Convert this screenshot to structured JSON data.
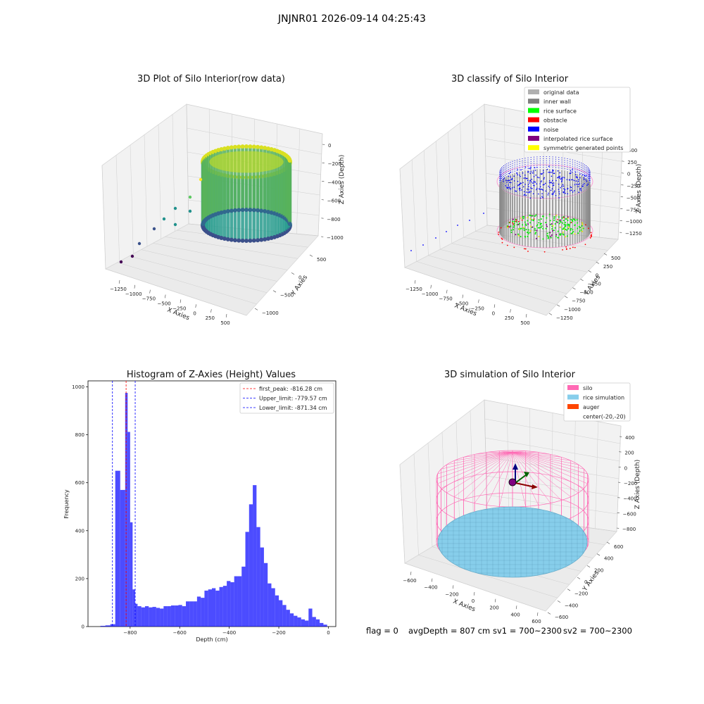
{
  "figure": {
    "suptitle": "JNJNR01 2026-09-14 04:25:43",
    "footer": {
      "flag": "flag = 0",
      "avgdepth": "avgDepth = 807 cm",
      "sv1": "sv1 = 700~2300",
      "sv2": "sv2 = 700~2300"
    }
  },
  "panels": {
    "raw": {
      "title": "3D Plot of Silo Interior(row data)",
      "xlabel": "X Axies",
      "ylabel": "Y Axies",
      "zlabel": "Z Axies (Depth)",
      "xticks": [
        "−1250",
        "−1000",
        "−750",
        "−500",
        "−250",
        "0",
        "250",
        "500"
      ],
      "yticks": [
        "500",
        "0",
        "−500",
        "−1000"
      ],
      "zticks": [
        "0",
        "−200",
        "−400",
        "−600",
        "−800",
        "−1000"
      ]
    },
    "classify": {
      "title": "3D classify of Silo Interior",
      "xlabel": "X Axies",
      "ylabel": "Y Axies",
      "zlabel": "Z Axies (Depth)",
      "xticks": [
        "−1250",
        "−1000",
        "−750",
        "−500",
        "−250",
        "0",
        "250",
        "500"
      ],
      "yticks": [
        "500",
        "250",
        "0",
        "−250",
        "−500",
        "−750",
        "−1000",
        "−1250"
      ],
      "zticks": [
        "500",
        "250",
        "0",
        "−250",
        "−500",
        "−750",
        "−1000",
        "−1250"
      ],
      "legend": [
        {
          "label": "original data",
          "color": "#b0b0b0"
        },
        {
          "label": "inner wall",
          "color": "#808080"
        },
        {
          "label": "rice surface",
          "color": "#00ff00"
        },
        {
          "label": "obstacle",
          "color": "#ff0000"
        },
        {
          "label": "noise",
          "color": "#0000ff"
        },
        {
          "label": "interpolated rice surface",
          "color": "#800080"
        },
        {
          "label": "symmetric generated points",
          "color": "#ffff00"
        }
      ]
    },
    "sim": {
      "title": "3D simulation of Silo Interior",
      "xlabel": "X Axies",
      "ylabel": "Y Axies",
      "zlabel": "Z Axies (Depth)",
      "xticks": [
        "−600",
        "−400",
        "−200",
        "0",
        "200",
        "400",
        "600"
      ],
      "yticks": [
        "600",
        "400",
        "200",
        "0",
        "−200",
        "−400",
        "−600"
      ],
      "zticks": [
        "400",
        "200",
        "0",
        "−200",
        "−400",
        "−600",
        "−800"
      ],
      "legend": [
        {
          "label": "silo",
          "color": "#ff69b4"
        },
        {
          "label": "rice simulation",
          "color": "#87ceeb"
        },
        {
          "label": "auger",
          "color": "#ff4500"
        },
        {
          "label": "center(-20,-20)",
          "color": ""
        }
      ]
    }
  },
  "chart_data": {
    "type": "bar",
    "title": "Histogram of Z-Axies (Height) Values",
    "xlabel": "Depth (cm)",
    "ylabel": "Frequency",
    "xlim": [
      -970,
      30
    ],
    "ylim": [
      0,
      1025
    ],
    "xticks": [
      -800,
      -600,
      -400,
      -200,
      0
    ],
    "yticks": [
      0,
      200,
      400,
      600,
      800,
      1000
    ],
    "bar_color": "#0000ff",
    "bin_edges": [
      -920,
      -900,
      -880,
      -860,
      -840,
      -820,
      -810,
      -800,
      -790,
      -780,
      -770,
      -755,
      -740,
      -725,
      -710,
      -695,
      -680,
      -665,
      -650,
      -635,
      -620,
      -605,
      -590,
      -575,
      -560,
      -545,
      -530,
      -515,
      -500,
      -485,
      -470,
      -455,
      -440,
      -425,
      -410,
      -395,
      -380,
      -365,
      -350,
      -335,
      -320,
      -305,
      -290,
      -275,
      -260,
      -245,
      -230,
      -215,
      -200,
      -185,
      -170,
      -155,
      -140,
      -125,
      -110,
      -95,
      -80,
      -65,
      -50,
      -35,
      -20,
      -5
    ],
    "counts": [
      3,
      5,
      10,
      650,
      570,
      975,
      812,
      435,
      155,
      95,
      85,
      80,
      85,
      80,
      82,
      78,
      75,
      85,
      85,
      88,
      88,
      90,
      85,
      105,
      105,
      105,
      125,
      120,
      150,
      155,
      160,
      150,
      165,
      170,
      190,
      185,
      210,
      210,
      250,
      395,
      510,
      590,
      415,
      330,
      265,
      180,
      160,
      130,
      110,
      90,
      70,
      55,
      45,
      38,
      30,
      25,
      75,
      40,
      30,
      15,
      8
    ],
    "lines": [
      {
        "label": "first_peak: -816.28 cm",
        "x": -816.28,
        "color": "#ff0000"
      },
      {
        "label": "Upper_limit: -779.57 cm",
        "x": -779.57,
        "color": "#0000ff"
      },
      {
        "label": "Lower_limit: -871.34 cm",
        "x": -871.34,
        "color": "#0000ff"
      }
    ]
  }
}
